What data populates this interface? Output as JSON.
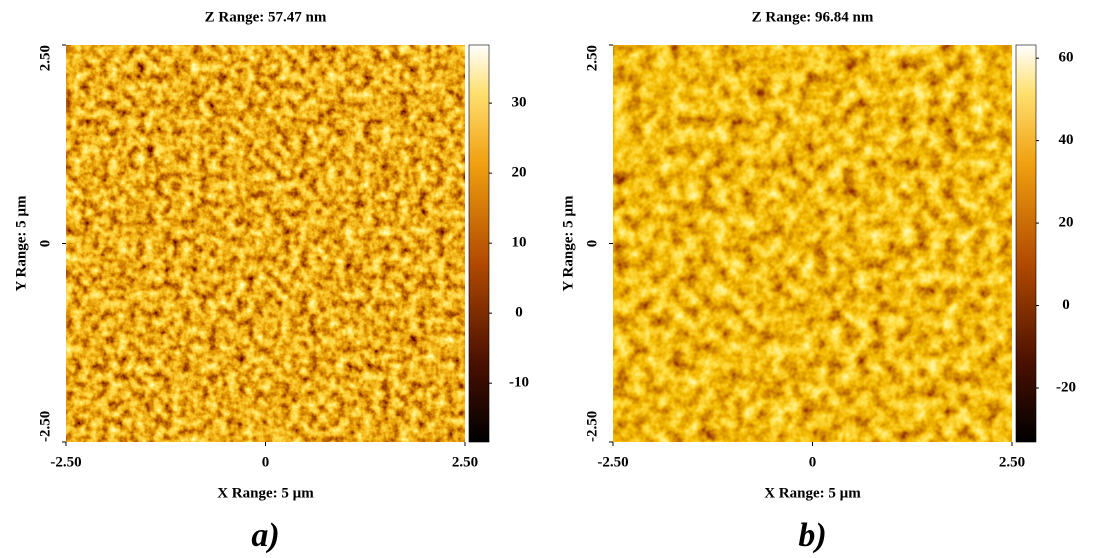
{
  "chart_data": [
    {
      "type": "image",
      "title": "Z Range: 57.47 nm",
      "x_label": "X Range: 5 µm",
      "y_label": "Y Range: 5 µm",
      "xlim": [
        -2.5,
        2.5
      ],
      "xticks": [
        {
          "value": -2.5,
          "label": "-2.50"
        },
        0,
        {
          "value": 2.5,
          "label": "2.50"
        }
      ],
      "ylim": [
        -2.5,
        2.5
      ],
      "yticks": [
        {
          "value": -2.5,
          "label": "-2.50"
        },
        0,
        {
          "value": 2.5,
          "label": "2.50"
        }
      ],
      "colormap": "afmhot",
      "zlim": [
        -18.4,
        38.3
      ],
      "zticks": [
        -10,
        0,
        10,
        20,
        30
      ],
      "caption": "a)"
    },
    {
      "type": "image",
      "title": "Z Range: 96.84 nm",
      "x_label": "X Range: 5 µm",
      "y_label": "Y Range: 5 µm",
      "xlim": [
        -2.5,
        2.5
      ],
      "xticks": [
        {
          "value": -2.5,
          "label": "-2.50"
        },
        0,
        {
          "value": 2.5,
          "label": "2.50"
        }
      ],
      "ylim": [
        -2.5,
        2.5
      ],
      "yticks": [
        {
          "value": -2.5,
          "label": "-2.50"
        },
        0,
        {
          "value": 2.5,
          "label": "2.50"
        }
      ],
      "colormap": "afmhot",
      "zlim": [
        -33.1,
        63.2
      ],
      "zticks": [
        -20,
        0,
        20,
        40,
        60
      ],
      "caption": "b)"
    }
  ]
}
